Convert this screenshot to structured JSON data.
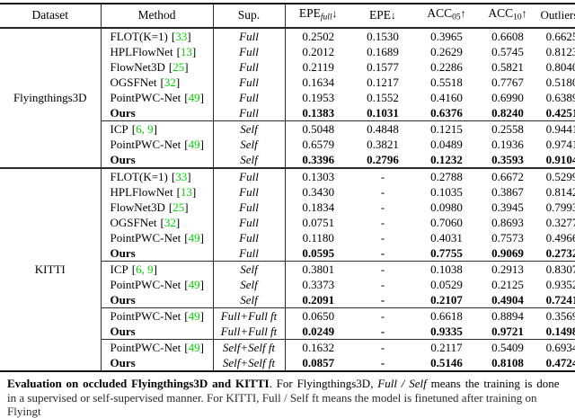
{
  "colors": {
    "citation_green": "#00d400",
    "rule_dark": "#141414"
  },
  "table": {
    "columns": [
      {
        "label": "Dataset"
      },
      {
        "label": "Method"
      },
      {
        "label": "Sup."
      },
      {
        "label": "EPE",
        "sub": "full",
        "arrow": "↓"
      },
      {
        "label": "EPE",
        "arrow": "↓"
      },
      {
        "label": "ACC",
        "sub": "05",
        "arrow": "↑"
      },
      {
        "label": "ACC",
        "sub": "10",
        "arrow": "↑"
      },
      {
        "label": "Outliers",
        "arrow": "↓"
      }
    ],
    "datasets": [
      {
        "name": "Flyingthings3D",
        "groups": [
          {
            "rows": [
              {
                "method": "FLOT(K=1)",
                "cite": {
                  "open": "[",
                  "text": "33",
                  "close": "]"
                },
                "sup": "Full",
                "values": [
                  "0.2502",
                  "0.1530",
                  "0.3965",
                  "0.6608",
                  "0.6625"
                ]
              },
              {
                "method": "HPLFlowNet",
                "cite": {
                  "open": "[",
                  "text": "13",
                  "close": "]"
                },
                "sup": "Full",
                "values": [
                  "0.2012",
                  "0.1689",
                  "0.2629",
                  "0.5745",
                  "0.8123"
                ]
              },
              {
                "method": "FlowNet3D",
                "cite": {
                  "open": "[",
                  "text": "25",
                  "close": "]"
                },
                "sup": "Full",
                "values": [
                  "0.2119",
                  "0.1577",
                  "0.2286",
                  "0.5821",
                  "0.8040"
                ]
              },
              {
                "method": "OGSFNet",
                "cite": {
                  "open": "[",
                  "text": "32",
                  "close": "]"
                },
                "sup": "Full",
                "values": [
                  "0.1634",
                  "0.1217",
                  "0.5518",
                  "0.7767",
                  "0.5180"
                ]
              },
              {
                "method": "PointPWC-Net",
                "cite": {
                  "open": "[",
                  "text": "49",
                  "close": "]"
                },
                "sup": "Full",
                "values": [
                  "0.1953",
                  "0.1552",
                  "0.4160",
                  "0.6990",
                  "0.6389"
                ]
              },
              {
                "method": "Ours",
                "sup": "Full",
                "bold": true,
                "values": [
                  "0.1383",
                  "0.1031",
                  "0.6376",
                  "0.8240",
                  "0.4251"
                ]
              }
            ]
          },
          {
            "rows": [
              {
                "method": "ICP",
                "cite": {
                  "open": "[",
                  "text": "6, 9",
                  "close": "]"
                },
                "sup": "Self",
                "values": [
                  "0.5048",
                  "0.4848",
                  "0.1215",
                  "0.2558",
                  "0.9441"
                ]
              },
              {
                "method": "PointPWC-Net",
                "cite": {
                  "open": "[",
                  "text": "49",
                  "close": "]"
                },
                "sup": "Self",
                "values": [
                  "0.6579",
                  "0.3821",
                  "0.0489",
                  "0.1936",
                  "0.9741"
                ]
              },
              {
                "method": "Ours",
                "sup": "Self",
                "bold": true,
                "values": [
                  "0.3396",
                  "0.2796",
                  "0.1232",
                  "0.3593",
                  "0.9104"
                ]
              }
            ]
          }
        ]
      },
      {
        "name": "KITTI",
        "groups": [
          {
            "rows": [
              {
                "method": "FLOT(K=1)",
                "cite": {
                  "open": "[",
                  "text": "33",
                  "close": "]"
                },
                "sup": "Full",
                "values": [
                  "0.1303",
                  "-",
                  "0.2788",
                  "0.6672",
                  "0.5299"
                ]
              },
              {
                "method": "HPLFlowNet",
                "cite": {
                  "open": "[",
                  "text": "13",
                  "close": "]"
                },
                "sup": "Full",
                "values": [
                  "0.3430",
                  "-",
                  "0.1035",
                  "0.3867",
                  "0.8142"
                ]
              },
              {
                "method": "FlowNet3D",
                "cite": {
                  "open": "[",
                  "text": "25",
                  "close": "]"
                },
                "sup": "Full",
                "values": [
                  "0.1834",
                  "-",
                  "0.0980",
                  "0.3945",
                  "0.7993"
                ]
              },
              {
                "method": "OGSFNet",
                "cite": {
                  "open": "[",
                  "text": "32",
                  "close": "]"
                },
                "sup": "Full",
                "values": [
                  "0.0751",
                  "-",
                  "0.7060",
                  "0.8693",
                  "0.3277"
                ]
              },
              {
                "method": "PointPWC-Net",
                "cite": {
                  "open": "[",
                  "text": "49",
                  "close": "]"
                },
                "sup": "Full",
                "values": [
                  "0.1180",
                  "-",
                  "0.4031",
                  "0.7573",
                  "0.4966"
                ]
              },
              {
                "method": "Ours",
                "sup": "Full",
                "bold": true,
                "values": [
                  "0.0595",
                  "-",
                  "0.7755",
                  "0.9069",
                  "0.2732"
                ]
              }
            ]
          },
          {
            "rows": [
              {
                "method": "ICP",
                "cite": {
                  "open": "[",
                  "text": "6, 9",
                  "close": "]"
                },
                "sup": "Self",
                "values": [
                  "0.3801",
                  "-",
                  "0.1038",
                  "0.2913",
                  "0.8307"
                ]
              },
              {
                "method": "PointPWC-Net",
                "cite": {
                  "open": "[",
                  "text": "49",
                  "close": "]"
                },
                "sup": "Self",
                "values": [
                  "0.3373",
                  "-",
                  "0.0529",
                  "0.2125",
                  "0.9352"
                ]
              },
              {
                "method": "Ours",
                "sup": "Self",
                "bold": true,
                "values": [
                  "0.2091",
                  "-",
                  "0.2107",
                  "0.4904",
                  "0.7241"
                ]
              }
            ]
          },
          {
            "rows": [
              {
                "method": "PointPWC-Net",
                "cite": {
                  "open": "[",
                  "text": "49",
                  "close": "]"
                },
                "sup": "Full+Full ft",
                "values": [
                  "0.0650",
                  "-",
                  "0.6618",
                  "0.8894",
                  "0.3569"
                ]
              },
              {
                "method": "Ours",
                "sup": "Full+Full ft",
                "bold": true,
                "values": [
                  "0.0249",
                  "-",
                  "0.9335",
                  "0.9721",
                  "0.1498"
                ]
              }
            ]
          },
          {
            "rows": [
              {
                "method": "PointPWC-Net",
                "cite": {
                  "open": "[",
                  "text": "49",
                  "close": "]"
                },
                "sup": "Self+Self ft",
                "values": [
                  "0.1632",
                  "-",
                  "0.2117",
                  "0.5409",
                  "0.6934"
                ]
              },
              {
                "method": "Ours",
                "sup": "Self+Self ft",
                "bold": true,
                "values": [
                  "0.0857",
                  "-",
                  "0.5146",
                  "0.8108",
                  "0.4724"
                ]
              }
            ]
          }
        ]
      }
    ]
  },
  "caption": {
    "heading": "Evaluation on occluded Flyingthings3D and KITTI",
    "text_1": ". For Flyingthings3D, ",
    "italic_1": "Full / Self",
    "text_2": " means the training is done",
    "line2": "in a supervised or self-supervised manner. For KITTI, Full / Self ft means the model is finetuned after training on Flyingt"
  }
}
